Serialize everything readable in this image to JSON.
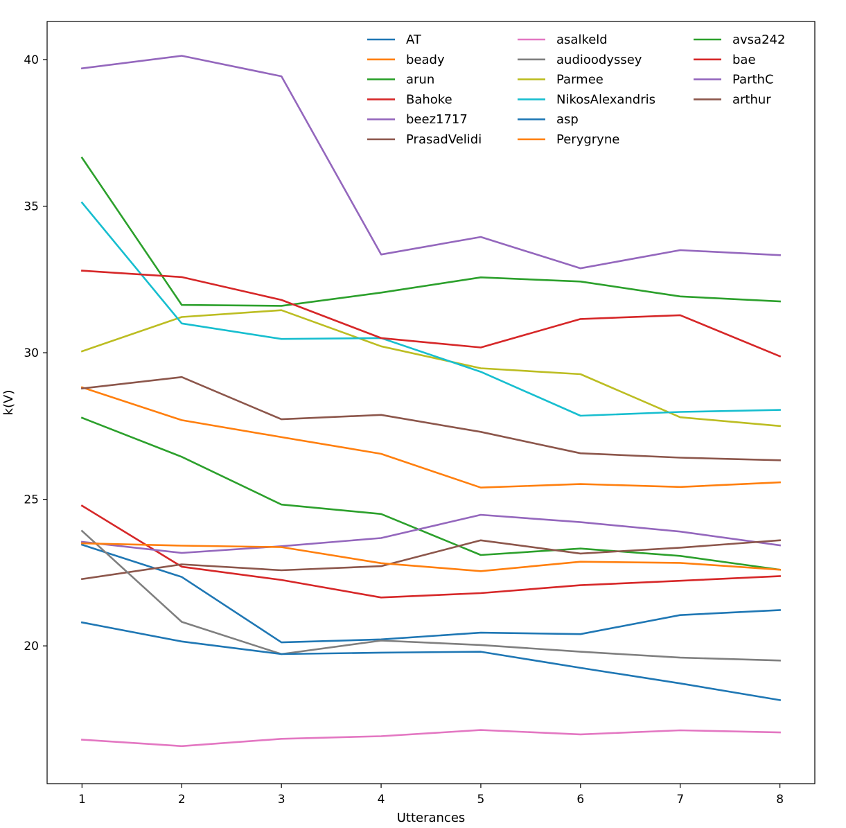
{
  "chart_data": {
    "type": "line",
    "title": "",
    "xlabel": "Utterances",
    "ylabel": "k(V)",
    "xlim": [
      0.65,
      8.35
    ],
    "ylim": [
      15.3,
      41.3
    ],
    "x": [
      1,
      2,
      3,
      4,
      5,
      6,
      7,
      8
    ],
    "xticks": [
      1,
      2,
      3,
      4,
      5,
      6,
      7,
      8
    ],
    "yticks": [
      20,
      25,
      30,
      35,
      40
    ],
    "grid": false,
    "legend_position": "top-right",
    "legend_columns": 3,
    "series": [
      {
        "name": "AT",
        "color": "#1f77b4",
        "values": [
          23.45,
          22.35,
          20.12,
          20.22,
          20.45,
          20.4,
          21.05,
          21.22
        ]
      },
      {
        "name": "beady",
        "color": "#ff7f0e",
        "values": [
          28.82,
          27.7,
          27.12,
          26.55,
          25.4,
          25.52,
          25.42,
          25.58
        ]
      },
      {
        "name": "arun",
        "color": "#2ca02c",
        "values": [
          27.78,
          26.45,
          24.82,
          24.5,
          23.1,
          23.32,
          23.07,
          22.6
        ]
      },
      {
        "name": "Bahoke",
        "color": "#d62728",
        "values": [
          24.78,
          22.7,
          22.25,
          21.65,
          21.8,
          22.07,
          22.22,
          22.38
        ]
      },
      {
        "name": "beez1717",
        "color": "#9467bd",
        "values": [
          23.55,
          23.17,
          23.4,
          23.68,
          24.47,
          24.22,
          23.9,
          23.43
        ]
      },
      {
        "name": "PrasadVelidi",
        "color": "#8c564b",
        "values": [
          22.28,
          22.78,
          22.58,
          22.72,
          23.6,
          23.15,
          23.35,
          23.6
        ]
      },
      {
        "name": "asalkeld",
        "color": "#e377c2",
        "values": [
          16.8,
          16.58,
          16.83,
          16.92,
          17.13,
          16.98,
          17.12,
          17.05
        ]
      },
      {
        "name": "audioodyssey",
        "color": "#7f7f7f",
        "values": [
          23.92,
          20.82,
          19.72,
          20.18,
          20.03,
          19.8,
          19.6,
          19.5
        ]
      },
      {
        "name": "Parmee",
        "color": "#bcbd22",
        "values": [
          30.05,
          31.22,
          31.45,
          30.22,
          29.47,
          29.27,
          27.8,
          27.5
        ]
      },
      {
        "name": "NikosAlexandris",
        "color": "#17becf",
        "values": [
          35.12,
          31.0,
          30.47,
          30.5,
          29.35,
          27.85,
          27.98,
          28.05
        ]
      },
      {
        "name": "asp",
        "color": "#1f77b4",
        "values": [
          20.8,
          20.15,
          19.72,
          19.77,
          19.8,
          19.25,
          18.72,
          18.15
        ]
      },
      {
        "name": "Perygryne",
        "color": "#ff7f0e",
        "values": [
          23.5,
          23.42,
          23.37,
          22.82,
          22.55,
          22.87,
          22.83,
          22.6
        ]
      },
      {
        "name": "avsa242",
        "color": "#2ca02c",
        "values": [
          36.65,
          31.63,
          31.6,
          32.05,
          32.57,
          32.43,
          31.92,
          31.75
        ]
      },
      {
        "name": "bae",
        "color": "#d62728",
        "values": [
          32.8,
          32.58,
          31.8,
          30.5,
          30.18,
          31.15,
          31.28,
          29.88
        ]
      },
      {
        "name": "ParthC",
        "color": "#9467bd",
        "values": [
          39.7,
          40.13,
          39.43,
          33.35,
          33.95,
          32.88,
          33.5,
          33.33
        ]
      },
      {
        "name": "arthur",
        "color": "#8c564b",
        "values": [
          28.78,
          29.17,
          27.73,
          27.88,
          27.3,
          26.57,
          26.42,
          26.33
        ]
      }
    ]
  }
}
